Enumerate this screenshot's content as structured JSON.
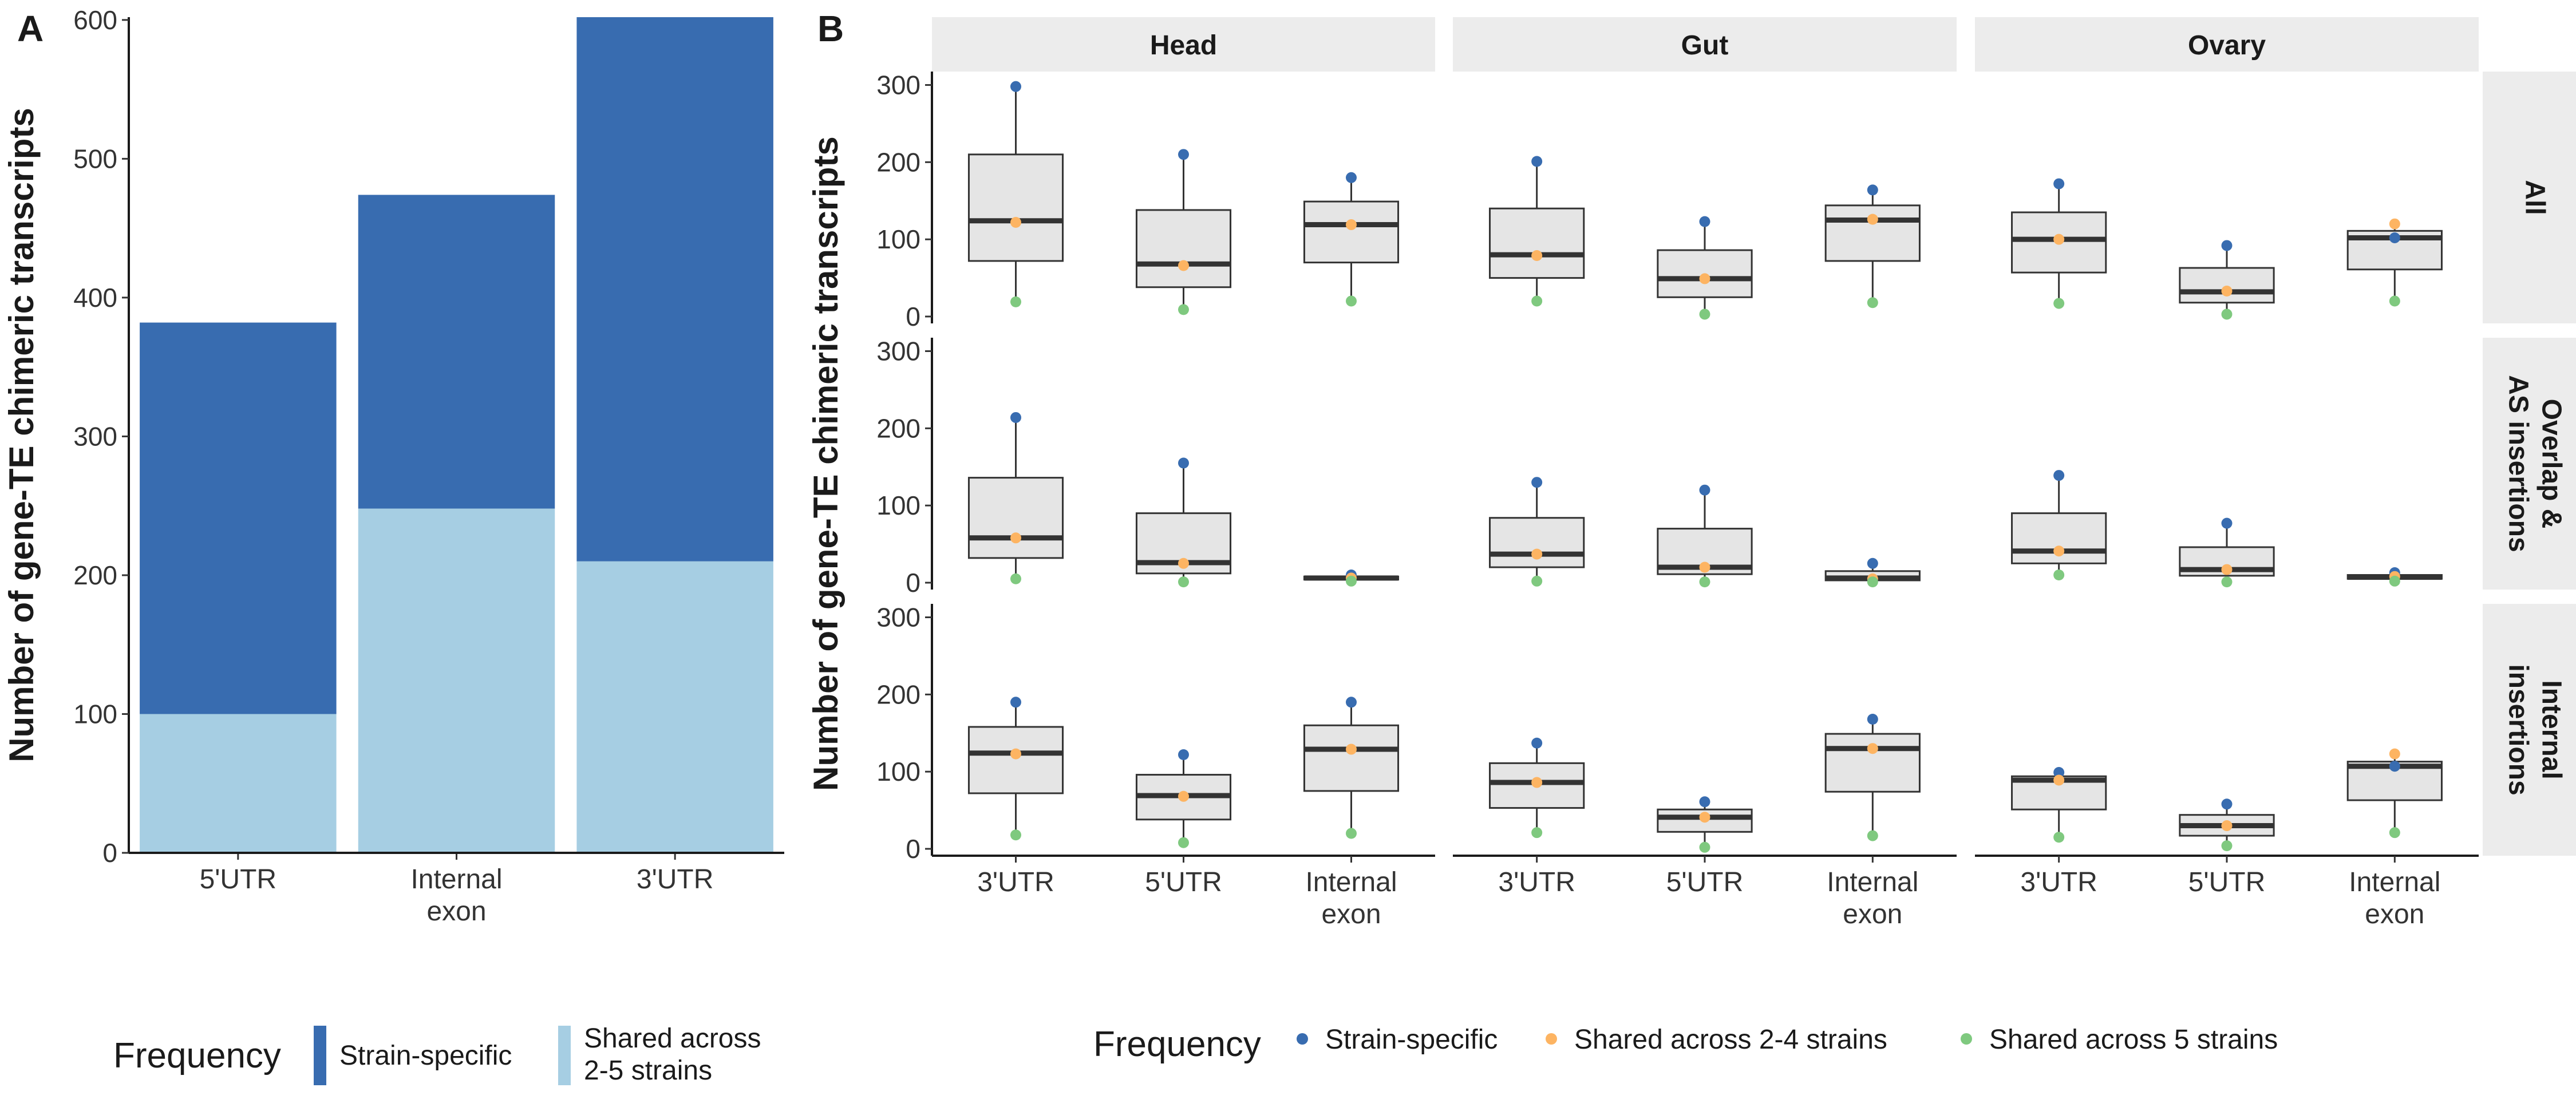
{
  "chart_data": [
    {
      "panel": "A",
      "type": "bar",
      "stacked": true,
      "categories": [
        "5'UTR",
        "Internal exon",
        "3'UTR"
      ],
      "category_labels": [
        [
          "5'UTR"
        ],
        [
          "Internal",
          "exon"
        ],
        [
          "3'UTR"
        ]
      ],
      "series": [
        {
          "name": "Shared across 2-5 strains",
          "color": "#a6cee3",
          "values": [
            100,
            248,
            210
          ]
        },
        {
          "name": "Strain-specific",
          "color": "#386cb0",
          "values": [
            282,
            226,
            392
          ]
        }
      ],
      "totals": [
        382,
        474,
        602
      ],
      "ylabel": "Number of gene-TE chimeric transcripts",
      "ylim": [
        0,
        602
      ],
      "yticks": [
        0,
        100,
        200,
        300,
        400,
        500,
        600
      ],
      "legend": {
        "title": "Frequency",
        "position": "bottom",
        "labels": [
          [
            "Strain-specific"
          ],
          [
            "Shared across",
            "2-5 strains"
          ]
        ]
      }
    },
    {
      "panel": "B",
      "type": "boxplot",
      "ylabel": "Number of gene-TE chimeric transcripts",
      "ylim": [
        0,
        310
      ],
      "yticks": [
        0,
        100,
        200,
        300
      ],
      "columns": [
        "Head",
        "Gut",
        "Ovary"
      ],
      "rows": [
        [
          "All"
        ],
        [
          "Overlap &",
          "AS insertions"
        ],
        [
          "Internal",
          "insertions"
        ]
      ],
      "categories": [
        "3'UTR",
        "5'UTR",
        "Internal exon"
      ],
      "category_labels": [
        [
          "3'UTR"
        ],
        [
          "5'UTR"
        ],
        [
          "Internal",
          "exon"
        ]
      ],
      "point_legend": {
        "title": "Frequency",
        "position": "bottom",
        "items": [
          {
            "name": "Strain-specific",
            "color": "#386cb0"
          },
          {
            "name": "Shared across 2-4 strains",
            "color": "#fdb462"
          },
          {
            "name": "Shared across 5 strains",
            "color": "#7fc97f"
          }
        ]
      },
      "box_fill": "#e5e5e5",
      "panels": [
        {
          "row": 0,
          "col": 0,
          "boxes": [
            {
              "q1": 72,
              "median": 124,
              "q3": 210,
              "whislo": 19,
              "whishi": 298,
              "points": [
                298,
                122,
                19
              ]
            },
            {
              "q1": 38,
              "median": 68,
              "q3": 138,
              "whislo": 9,
              "whishi": 210,
              "points": [
                210,
                66,
                9
              ]
            },
            {
              "q1": 70,
              "median": 119,
              "q3": 149,
              "whislo": 20,
              "whishi": 180,
              "points": [
                180,
                119,
                20
              ]
            }
          ]
        },
        {
          "row": 0,
          "col": 1,
          "boxes": [
            {
              "q1": 50,
              "median": 80,
              "q3": 140,
              "whislo": 20,
              "whishi": 201,
              "points": [
                201,
                79,
                20
              ]
            },
            {
              "q1": 25,
              "median": 49,
              "q3": 86,
              "whislo": 3,
              "whishi": 123,
              "points": [
                123,
                49,
                3
              ]
            },
            {
              "q1": 72,
              "median": 125,
              "q3": 144,
              "whislo": 18,
              "whishi": 164,
              "points": [
                164,
                126,
                18
              ]
            }
          ]
        },
        {
          "row": 0,
          "col": 2,
          "boxes": [
            {
              "q1": 57,
              "median": 100,
              "q3": 135,
              "whislo": 17,
              "whishi": 172,
              "points": [
                172,
                100,
                17
              ]
            },
            {
              "q1": 18,
              "median": 32,
              "q3": 63,
              "whislo": 3,
              "whishi": 92,
              "points": [
                92,
                33,
                3
              ]
            },
            {
              "q1": 61,
              "median": 102,
              "q3": 111,
              "whislo": 20,
              "whishi": 120,
              "points": [
                102,
                120,
                20
              ]
            }
          ]
        },
        {
          "row": 1,
          "col": 0,
          "boxes": [
            {
              "q1": 32,
              "median": 58,
              "q3": 136,
              "whislo": 5,
              "whishi": 214,
              "points": [
                214,
                58,
                5
              ]
            },
            {
              "q1": 12,
              "median": 26,
              "q3": 90,
              "whislo": 1,
              "whishi": 155,
              "points": [
                155,
                25,
                1
              ]
            },
            {
              "q1": 4,
              "median": 6,
              "q3": 8,
              "whislo": 2,
              "whishi": 10,
              "points": [
                10,
                6,
                2
              ]
            }
          ]
        },
        {
          "row": 1,
          "col": 1,
          "boxes": [
            {
              "q1": 20,
              "median": 37,
              "q3": 84,
              "whislo": 2,
              "whishi": 130,
              "points": [
                130,
                37,
                2
              ]
            },
            {
              "q1": 11,
              "median": 20,
              "q3": 70,
              "whislo": 1,
              "whishi": 120,
              "points": [
                120,
                20,
                1
              ]
            },
            {
              "q1": 3,
              "median": 6,
              "q3": 15,
              "whislo": 1,
              "whishi": 25,
              "points": [
                25,
                5,
                1
              ]
            }
          ]
        },
        {
          "row": 1,
          "col": 2,
          "boxes": [
            {
              "q1": 25,
              "median": 41,
              "q3": 90,
              "whislo": 10,
              "whishi": 139,
              "points": [
                139,
                41,
                10
              ]
            },
            {
              "q1": 9,
              "median": 17,
              "q3": 46,
              "whislo": 1,
              "whishi": 77,
              "points": [
                77,
                17,
                1
              ]
            },
            {
              "q1": 5,
              "median": 7,
              "q3": 10,
              "whislo": 2,
              "whishi": 13,
              "points": [
                13,
                8,
                2
              ]
            }
          ]
        },
        {
          "row": 2,
          "col": 0,
          "boxes": [
            {
              "q1": 72,
              "median": 124,
              "q3": 158,
              "whislo": 18,
              "whishi": 190,
              "points": [
                190,
                123,
                18
              ]
            },
            {
              "q1": 38,
              "median": 69,
              "q3": 96,
              "whislo": 8,
              "whishi": 122,
              "points": [
                122,
                68,
                8
              ]
            },
            {
              "q1": 75,
              "median": 129,
              "q3": 160,
              "whislo": 20,
              "whishi": 190,
              "points": [
                190,
                129,
                20
              ]
            }
          ]
        },
        {
          "row": 2,
          "col": 1,
          "boxes": [
            {
              "q1": 53,
              "median": 86,
              "q3": 111,
              "whislo": 21,
              "whishi": 137,
              "points": [
                137,
                86,
                21
              ]
            },
            {
              "q1": 22,
              "median": 41,
              "q3": 51,
              "whislo": 2,
              "whishi": 61,
              "points": [
                61,
                41,
                2
              ]
            },
            {
              "q1": 74,
              "median": 130,
              "q3": 149,
              "whislo": 17,
              "whishi": 168,
              "points": [
                168,
                130,
                17
              ]
            }
          ]
        },
        {
          "row": 2,
          "col": 2,
          "boxes": [
            {
              "q1": 51,
              "median": 89,
              "q3": 94,
              "whislo": 15,
              "whishi": 99,
              "points": [
                99,
                89,
                15
              ]
            },
            {
              "q1": 17,
              "median": 30,
              "q3": 44,
              "whislo": 4,
              "whishi": 58,
              "points": [
                58,
                30,
                4
              ]
            },
            {
              "q1": 63,
              "median": 107,
              "q3": 113,
              "whislo": 21,
              "whishi": 123,
              "points": [
                107,
                123,
                21
              ]
            }
          ]
        }
      ]
    }
  ],
  "figure": {
    "panel_letters": [
      "A",
      "B"
    ]
  }
}
